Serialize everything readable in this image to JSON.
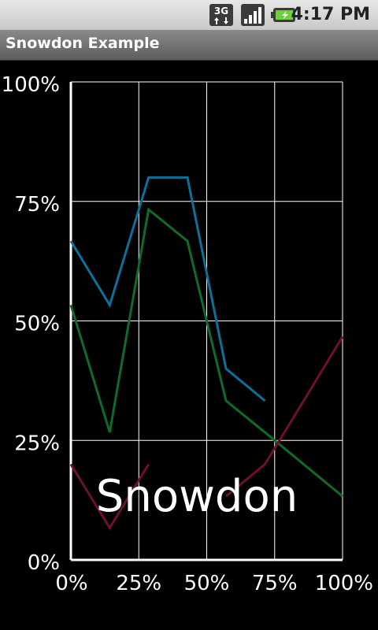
{
  "status_bar": {
    "network": "3G",
    "network_icon": "3g-data-icon",
    "signal_icon": "signal-strength-icon",
    "battery_icon": "battery-charging-icon",
    "time": "4:17 PM"
  },
  "app": {
    "title": "Snowdon Example"
  },
  "chart_data": {
    "type": "line",
    "title": "Snowdon",
    "xlabel": "",
    "ylabel": "",
    "xlim": [
      0,
      100
    ],
    "ylim": [
      0,
      100
    ],
    "x_ticks": [
      0,
      25,
      50,
      75,
      100
    ],
    "y_ticks": [
      0,
      25,
      50,
      75,
      100
    ],
    "x_tick_labels": [
      "0%",
      "25%",
      "50%",
      "75%",
      "100%"
    ],
    "y_tick_labels": [
      "0%",
      "25%",
      "50%",
      "75%",
      "100%"
    ],
    "grid": true,
    "series": [
      {
        "color": "#0e6f99",
        "points": [
          [
            0,
            66.7
          ],
          [
            14.3,
            53.3
          ],
          [
            28.6,
            80
          ],
          [
            42.9,
            80
          ],
          [
            57.1,
            40
          ],
          [
            71.4,
            33.3
          ]
        ]
      },
      {
        "color": "#0f6b2a",
        "points": [
          [
            0,
            53.3
          ],
          [
            14.3,
            26.7
          ],
          [
            28.6,
            73.3
          ],
          [
            42.9,
            66.7
          ],
          [
            57.1,
            33.3
          ],
          [
            71.4,
            26.7
          ],
          [
            85.7,
            20
          ],
          [
            100,
            13.3
          ]
        ]
      },
      {
        "color": "#6e1030",
        "points": [
          [
            0,
            20
          ],
          [
            14.3,
            6.7
          ],
          [
            28.6,
            20
          ],
          null,
          [
            57.1,
            13.3
          ],
          [
            71.4,
            20
          ],
          [
            85.7,
            33.3
          ],
          [
            100,
            46.7
          ]
        ]
      }
    ]
  }
}
